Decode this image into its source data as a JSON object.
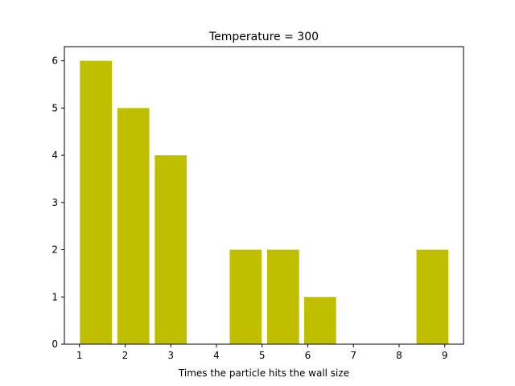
{
  "chart_data": {
    "type": "bar",
    "title": "Temperature = 300",
    "xlabel": "Times the particle hits the wall size",
    "ylabel": "",
    "bars": [
      {
        "x": 1.36,
        "value": 6
      },
      {
        "x": 2.18,
        "value": 5
      },
      {
        "x": 3.0,
        "value": 4
      },
      {
        "x": 4.64,
        "value": 2
      },
      {
        "x": 5.46,
        "value": 2
      },
      {
        "x": 6.27,
        "value": 1
      },
      {
        "x": 8.73,
        "value": 2
      }
    ],
    "bar_width": 0.7,
    "xlim": [
      0.67,
      9.41
    ],
    "ylim": [
      0,
      6.3
    ],
    "xticks": [
      1,
      2,
      3,
      4,
      5,
      6,
      7,
      8,
      9
    ],
    "yticks": [
      0,
      1,
      2,
      3,
      4,
      5,
      6
    ],
    "bar_color": "#bfbf00",
    "grid": false,
    "legend": "none"
  }
}
